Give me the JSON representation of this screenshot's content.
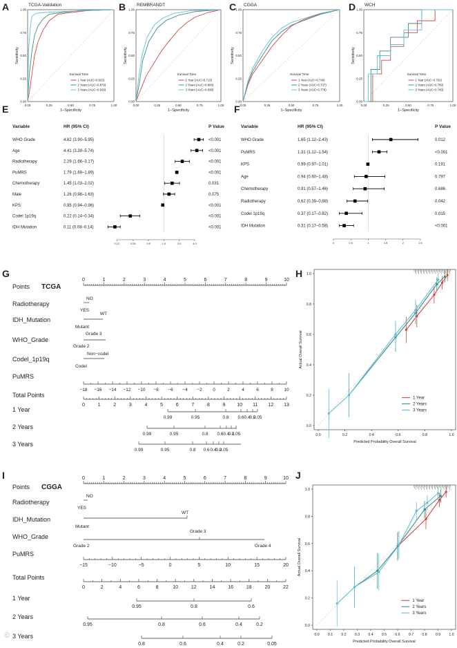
{
  "colors": {
    "y1": "#d7453b",
    "y2": "#3a8f86",
    "y3": "#5fbfd6",
    "forest": "#000000",
    "axis": "#333333",
    "ref": "#bfbfbf"
  },
  "roc_common": {
    "xlabel": "1−Specificity",
    "ylabel": "Sensitivity",
    "legend_title": "Survival Time",
    "ticks": [
      "0.00",
      "0.25",
      "0.50",
      "0.75",
      "1.00"
    ]
  },
  "panels": {
    "A": {
      "letter": "A",
      "title": "TCGA-Validation",
      "legend": [
        "1 Year (AUC=0.823)",
        "2 Years (AUC=0.879)",
        "3 Years (AUC=0.939)"
      ]
    },
    "B": {
      "letter": "B",
      "title": "REMBRANDT",
      "legend": [
        "1 Year (AUC=0.713)",
        "2 Years (AUC=0.808)",
        "3 Years (AUC=0.838)"
      ]
    },
    "C": {
      "letter": "C",
      "title": "CGGA",
      "legend": [
        "1 Year (AUC=0.740)",
        "2 Years (AUC=0.737)",
        "3 Years (AUC=0.778)"
      ]
    },
    "D": {
      "letter": "D",
      "title": "WCH",
      "legend": [
        "1 Year (AUC=0.702)",
        "2 Years (AUC=0.789)",
        "3 Years (AUC=0.745)"
      ]
    }
  },
  "forestE": {
    "letter": "E",
    "hdr": [
      "Variable",
      "HR (95% CI)",
      "P Value"
    ],
    "rows": [
      [
        "WHO Grade",
        "4.82 (3.90–5.95)",
        "<0.001"
      ],
      [
        "Age",
        "4.41 (3.39–5.74)",
        "<0.001"
      ],
      [
        "Radiotherapy",
        "2.29 (1.66–3.17)",
        "<0.001"
      ],
      [
        "PuMRS",
        "1.79 (1.69–1.89)",
        "<0.001"
      ],
      [
        "Chemotherapy",
        "1.45 (1.03–2.02)",
        "0.031"
      ],
      [
        "Male",
        "1.26 (0.98–1.63)",
        "0.075"
      ],
      [
        "KPS",
        "0.95 (0.94–0.96)",
        "<0.001"
      ],
      [
        "Codel 1p19q",
        "0.22 (0.14–0.34)",
        "<0.001"
      ],
      [
        "IDH Mutation",
        "0.11 (0.08–0.14)",
        "<0.001"
      ]
    ],
    "ticks": [
      "0.12",
      "0.25",
      "0.5",
      "1.0",
      "2.0",
      "4.0"
    ]
  },
  "forestF": {
    "letter": "F",
    "hdr": [
      "Variable",
      "HR (95% CI)",
      "P Value"
    ],
    "rows": [
      [
        "WHO Grade",
        "1.65 (1.12–2.43)",
        "0.012"
      ],
      [
        "PuMRS",
        "1.31 (1.12–1.54)",
        "<0.001"
      ],
      [
        "KPS",
        "0.99 (0.97–1.01)",
        "0.191"
      ],
      [
        "Age",
        "0.94 (0.60–1.48)",
        "0.797"
      ],
      [
        "Chemotherapy",
        "0.91 (0.57–1.46)",
        "0.686"
      ],
      [
        "Radiotherapy",
        "0.62 (0.39–0.98)",
        "0.042"
      ],
      [
        "Codel 1p19q",
        "0.37 (0.17–0.82)",
        "0.015"
      ],
      [
        "IDH Mutation",
        "0.31 (0.17–0.58)",
        "<0.001"
      ]
    ],
    "ticks": [
      "0",
      "0.5",
      "1",
      "1.5",
      "2",
      "2.5"
    ]
  },
  "nomoG": {
    "letter": "G",
    "cohort": "TCGA",
    "points_label": "Points",
    "points_ticks": [
      "0",
      "1",
      "2",
      "3",
      "4",
      "5",
      "6",
      "7",
      "8",
      "9",
      "10"
    ],
    "radiotherapy": {
      "label": "Radiotherapy",
      "a": "NO",
      "b": "YES"
    },
    "idh": {
      "label": "IDH_Mutation",
      "a": "WT",
      "b": "Mutant"
    },
    "who": {
      "label": "WHO_Grade",
      "a": "Grade 3",
      "b": "Grade 2"
    },
    "codel": {
      "label": "Codel_1p19q",
      "a": "Non−codel",
      "b": "Codel"
    },
    "pumrs": {
      "label": "PuMRS",
      "ticks": [
        "−18",
        "−16",
        "−14",
        "−12",
        "−10",
        "−8",
        "−6",
        "−4",
        "−2",
        "0",
        "2",
        "4",
        "6",
        "8",
        "10"
      ]
    },
    "total": {
      "label": "Total Points",
      "ticks": [
        "0",
        "1",
        "2",
        "3",
        "4",
        "5",
        "6",
        "7",
        "8",
        "9",
        "10",
        "11",
        "12",
        "13"
      ]
    },
    "y1": {
      "label": "1 Year",
      "ticks": [
        "0.99",
        "0.95",
        "0.8",
        "0.6",
        "0.4",
        "0.2",
        "0.05"
      ]
    },
    "y2": {
      "label": "2 Years",
      "ticks": [
        "0.99",
        "0.95",
        "0.8",
        "0.6",
        "0.4",
        "0.2",
        "0.05"
      ]
    },
    "y3": {
      "label": "3 Years",
      "ticks": [
        "0.99",
        "0.95",
        "0.8",
        "0.6",
        "0.4",
        "0.2",
        "0.05"
      ]
    }
  },
  "nomoI": {
    "letter": "I",
    "cohort": "CGGA",
    "points_label": "Points",
    "points_ticks": [
      "0",
      "1",
      "2",
      "3",
      "4",
      "5",
      "6",
      "7",
      "8",
      "9",
      "10"
    ],
    "radiotherapy": {
      "label": "Radiotherapy",
      "a": "NO",
      "b": "YES"
    },
    "idh": {
      "label": "IDH_Mutation",
      "a": "WT",
      "b": "Mutant"
    },
    "who": {
      "label": "WHO_Grade",
      "a": "Grade 3",
      "b": "Grade 2",
      "c": "Grade 4"
    },
    "pumrs": {
      "label": "PuMRS",
      "ticks": [
        "−15",
        "−10",
        "−5",
        "0",
        "5",
        "10",
        "15",
        "20"
      ]
    },
    "total": {
      "label": "Total Points",
      "ticks": [
        "0",
        "2",
        "4",
        "6",
        "8",
        "10",
        "12",
        "14",
        "16",
        "18",
        "20",
        "22"
      ]
    },
    "y1": {
      "label": "1 Year",
      "ticks": [
        "0.95",
        "0.8",
        "0.6"
      ]
    },
    "y2": {
      "label": "2 Years",
      "ticks": [
        "0.95",
        "0.8",
        "0.6",
        "0.4",
        "0.2"
      ]
    },
    "y3": {
      "label": "3 Years",
      "ticks": [
        "0.8",
        "0.6",
        "0.4",
        "0.2",
        "0.05"
      ]
    }
  },
  "calH": {
    "letter": "H",
    "xlabel": "Predicted Probability Overall Survival",
    "ylabel": "Actual Overall Survival",
    "ticks": [
      "0.0",
      "0.2",
      "0.4",
      "0.6",
      "0.8",
      "1.0"
    ],
    "legend": [
      "1 Year",
      "2 Years",
      "3 Years"
    ]
  },
  "calJ": {
    "letter": "J",
    "xlabel": "Predicted Probability Overall Survival",
    "ylabel": "Actual Overall Survival",
    "ticks": [
      "0.0",
      "0.1",
      "0.2",
      "0.3",
      "0.4",
      "0.5",
      "0.6",
      "0.7",
      "0.8",
      "0.9",
      "1.0"
    ],
    "yticks": [
      "0.0",
      "0.2",
      "0.4",
      "0.6",
      "0.8",
      "1.0"
    ],
    "legend": [
      "1 Year",
      "2 Years",
      "3 Years"
    ]
  },
  "chart_data": [
    {
      "type": "line",
      "panel": "A",
      "title": "TCGA-Validation",
      "xlabel": "1−Specificity",
      "ylabel": "Sensitivity",
      "xlim": [
        0,
        1
      ],
      "ylim": [
        0,
        1
      ],
      "series": [
        {
          "name": "1 Year (AUC=0.823)",
          "x": [
            0,
            0.02,
            0.05,
            0.08,
            0.12,
            0.18,
            0.25,
            0.35,
            0.5,
            0.7,
            1
          ],
          "y": [
            0,
            0.1,
            0.3,
            0.5,
            0.65,
            0.78,
            0.88,
            0.95,
            0.97,
            0.99,
            1
          ]
        },
        {
          "name": "2 Years (AUC=0.879)",
          "x": [
            0,
            0.02,
            0.05,
            0.08,
            0.12,
            0.18,
            0.25,
            0.4,
            0.6,
            1
          ],
          "y": [
            0,
            0.3,
            0.55,
            0.72,
            0.82,
            0.9,
            0.95,
            0.97,
            0.99,
            1
          ]
        },
        {
          "name": "3 Years (AUC=0.939)",
          "x": [
            0,
            0.01,
            0.03,
            0.05,
            0.1,
            0.2,
            0.4,
            0.7,
            1
          ],
          "y": [
            0,
            0.55,
            0.8,
            0.93,
            0.96,
            0.97,
            0.98,
            0.99,
            1
          ]
        }
      ]
    },
    {
      "type": "line",
      "panel": "B",
      "title": "REMBRANDT",
      "xlabel": "1−Specificity",
      "ylabel": "Sensitivity",
      "xlim": [
        0,
        1
      ],
      "ylim": [
        0,
        1
      ],
      "series": [
        {
          "name": "1 Year (AUC=0.713)",
          "x": [
            0,
            0.05,
            0.12,
            0.2,
            0.3,
            0.4,
            0.5,
            0.6,
            0.7,
            0.85,
            1
          ],
          "y": [
            0,
            0.12,
            0.28,
            0.4,
            0.55,
            0.67,
            0.78,
            0.86,
            0.92,
            0.97,
            1
          ]
        },
        {
          "name": "2 Years (AUC=0.808)",
          "x": [
            0,
            0.04,
            0.08,
            0.15,
            0.25,
            0.35,
            0.5,
            0.7,
            1
          ],
          "y": [
            0,
            0.2,
            0.45,
            0.65,
            0.8,
            0.88,
            0.94,
            0.98,
            1
          ]
        },
        {
          "name": "3 Years (AUC=0.838)",
          "x": [
            0,
            0.03,
            0.07,
            0.13,
            0.22,
            0.32,
            0.45,
            0.65,
            1
          ],
          "y": [
            0,
            0.25,
            0.5,
            0.7,
            0.84,
            0.91,
            0.96,
            0.99,
            1
          ]
        }
      ]
    },
    {
      "type": "line",
      "panel": "C",
      "title": "CGGA",
      "xlabel": "1−Specificity",
      "ylabel": "Sensitivity",
      "xlim": [
        0,
        1
      ],
      "ylim": [
        0,
        1
      ],
      "series": [
        {
          "name": "1 Year (AUC=0.740)",
          "x": [
            0,
            0.05,
            0.1,
            0.2,
            0.3,
            0.4,
            0.5,
            0.6,
            0.7,
            0.85,
            1
          ],
          "y": [
            0,
            0.18,
            0.3,
            0.45,
            0.6,
            0.72,
            0.82,
            0.88,
            0.92,
            0.97,
            1
          ]
        },
        {
          "name": "2 Years (AUC=0.737)",
          "x": [
            0,
            0.05,
            0.1,
            0.2,
            0.3,
            0.4,
            0.5,
            0.65,
            0.8,
            1
          ],
          "y": [
            0,
            0.2,
            0.33,
            0.5,
            0.66,
            0.76,
            0.83,
            0.89,
            0.95,
            1
          ]
        },
        {
          "name": "3 Years (AUC=0.778)",
          "x": [
            0,
            0.05,
            0.1,
            0.2,
            0.3,
            0.4,
            0.5,
            0.65,
            0.8,
            1
          ],
          "y": [
            0,
            0.22,
            0.36,
            0.55,
            0.7,
            0.8,
            0.86,
            0.91,
            0.96,
            1
          ]
        }
      ]
    },
    {
      "type": "line",
      "panel": "D",
      "title": "WCH",
      "xlabel": "1−Specificity",
      "ylabel": "Sensitivity",
      "xlim": [
        0,
        1
      ],
      "ylim": [
        0,
        1
      ],
      "series": [
        {
          "name": "1 Year (AUC=0.702)",
          "x": [
            0,
            0.1,
            0.1,
            0.2,
            0.2,
            0.3,
            0.3,
            0.45,
            0.45,
            0.6,
            0.6,
            0.8,
            0.8,
            1
          ],
          "y": [
            0,
            0,
            0.3,
            0.3,
            0.45,
            0.45,
            0.6,
            0.6,
            0.75,
            0.75,
            0.88,
            0.88,
            1,
            1
          ]
        },
        {
          "name": "2 Years (AUC=0.789)",
          "x": [
            0,
            0.08,
            0.08,
            0.18,
            0.18,
            0.3,
            0.3,
            0.5,
            0.5,
            0.65,
            0.65,
            1
          ],
          "y": [
            0,
            0,
            0.35,
            0.35,
            0.55,
            0.55,
            0.7,
            0.7,
            0.85,
            0.85,
            1,
            1
          ]
        },
        {
          "name": "3 Years (AUC=0.745)",
          "x": [
            0,
            0.05,
            0.05,
            0.15,
            0.15,
            0.3,
            0.3,
            0.45,
            0.45,
            0.65,
            0.65,
            1
          ],
          "y": [
            0,
            0,
            0.3,
            0.3,
            0.5,
            0.5,
            0.62,
            0.62,
            0.78,
            0.78,
            1,
            1
          ]
        }
      ]
    },
    {
      "type": "forest",
      "panel": "E",
      "hr": [
        4.82,
        4.41,
        2.29,
        1.79,
        1.45,
        1.26,
        0.95,
        0.22,
        0.11
      ],
      "lo": [
        3.9,
        3.39,
        1.66,
        1.69,
        1.03,
        0.98,
        0.94,
        0.14,
        0.08
      ],
      "hi": [
        5.95,
        5.74,
        3.17,
        1.89,
        2.02,
        1.63,
        0.96,
        0.34,
        0.14
      ],
      "scale": "log",
      "xlim": [
        0.09,
        6
      ]
    },
    {
      "type": "forest",
      "panel": "F",
      "hr": [
        1.65,
        1.31,
        0.99,
        0.94,
        0.91,
        0.62,
        0.37,
        0.31
      ],
      "lo": [
        1.12,
        1.12,
        0.97,
        0.6,
        0.57,
        0.39,
        0.17,
        0.17
      ],
      "hi": [
        2.43,
        1.54,
        1.01,
        1.48,
        1.46,
        0.98,
        0.82,
        0.58
      ],
      "scale": "linear",
      "xlim": [
        0,
        2.5
      ]
    },
    {
      "type": "line",
      "panel": "H",
      "xlabel": "Predicted Probability Overall Survival",
      "ylabel": "Actual Overall Survival",
      "xlim": [
        0,
        1
      ],
      "ylim": [
        0,
        1
      ],
      "series": [
        {
          "name": "1 Year",
          "x": [
            0.66,
            0.74,
            0.87,
            0.93,
            0.97
          ],
          "y": [
            0.63,
            0.72,
            0.86,
            0.94,
            0.99
          ]
        },
        {
          "name": "2 Years",
          "x": [
            0.23,
            0.58,
            0.73,
            0.89,
            0.95
          ],
          "y": [
            0.2,
            0.58,
            0.74,
            0.93,
            0.98
          ]
        },
        {
          "name": "3 Years",
          "x": [
            0.08,
            0.23,
            0.58,
            0.73,
            0.9
          ],
          "y": [
            0.08,
            0.2,
            0.6,
            0.76,
            0.96
          ]
        }
      ]
    },
    {
      "type": "line",
      "panel": "J",
      "xlabel": "Predicted Probability Overall Survival",
      "ylabel": "Actual Overall Survival",
      "xlim": [
        0,
        1
      ],
      "ylim": [
        0,
        1
      ],
      "series": [
        {
          "name": "1 Year",
          "x": [
            0.6,
            0.81,
            0.91,
            0.96
          ],
          "y": [
            0.58,
            0.78,
            0.92,
            0.98
          ]
        },
        {
          "name": "2 Years",
          "x": [
            0.28,
            0.45,
            0.6,
            0.8,
            0.92
          ],
          "y": [
            0.28,
            0.4,
            0.58,
            0.85,
            0.95
          ]
        },
        {
          "name": "3 Years",
          "x": [
            0.15,
            0.28,
            0.46,
            0.61,
            0.74,
            0.82,
            0.9
          ],
          "y": [
            0.16,
            0.28,
            0.39,
            0.59,
            0.84,
            0.9,
            0.97
          ]
        }
      ]
    }
  ]
}
